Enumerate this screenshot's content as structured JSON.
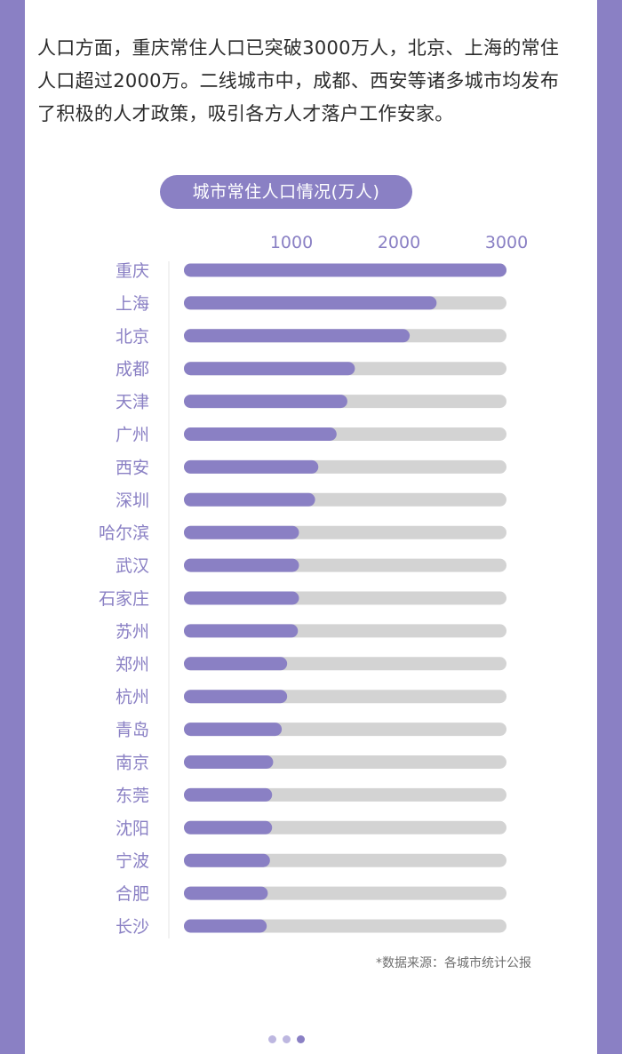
{
  "intro_text": "人口方面，重庆常住人口已突破3000万人，北京、上海的常住人口超过2000万。二线城市中，成都、西安等诸多城市均发布了积极的人才政策，吸引各方人才落户工作安家。",
  "source_note": "*数据来源：各城市统计公报",
  "colors": {
    "accent": "#8a80c4",
    "track": "#d3d3d3",
    "label": "#8a80c4"
  },
  "chart_data": {
    "type": "bar",
    "orientation": "horizontal",
    "title": "城市常住人口情况(万人)",
    "xlim": [
      0,
      3000
    ],
    "x_ticks": [
      1000,
      2000,
      3000
    ],
    "categories": [
      "重庆",
      "上海",
      "北京",
      "成都",
      "天津",
      "广州",
      "西安",
      "深圳",
      "哈尔滨",
      "武汉",
      "石家庄",
      "苏州",
      "郑州",
      "杭州",
      "青岛",
      "南京",
      "东莞",
      "沈阳",
      "宁波",
      "合肥",
      "长沙"
    ],
    "values": [
      3000,
      2350,
      2100,
      1590,
      1520,
      1420,
      1250,
      1220,
      1070,
      1070,
      1070,
      1060,
      960,
      960,
      910,
      830,
      820,
      820,
      800,
      780,
      770
    ],
    "grid": false,
    "legend": "none"
  },
  "pagination": {
    "count": 3,
    "active": 2
  }
}
